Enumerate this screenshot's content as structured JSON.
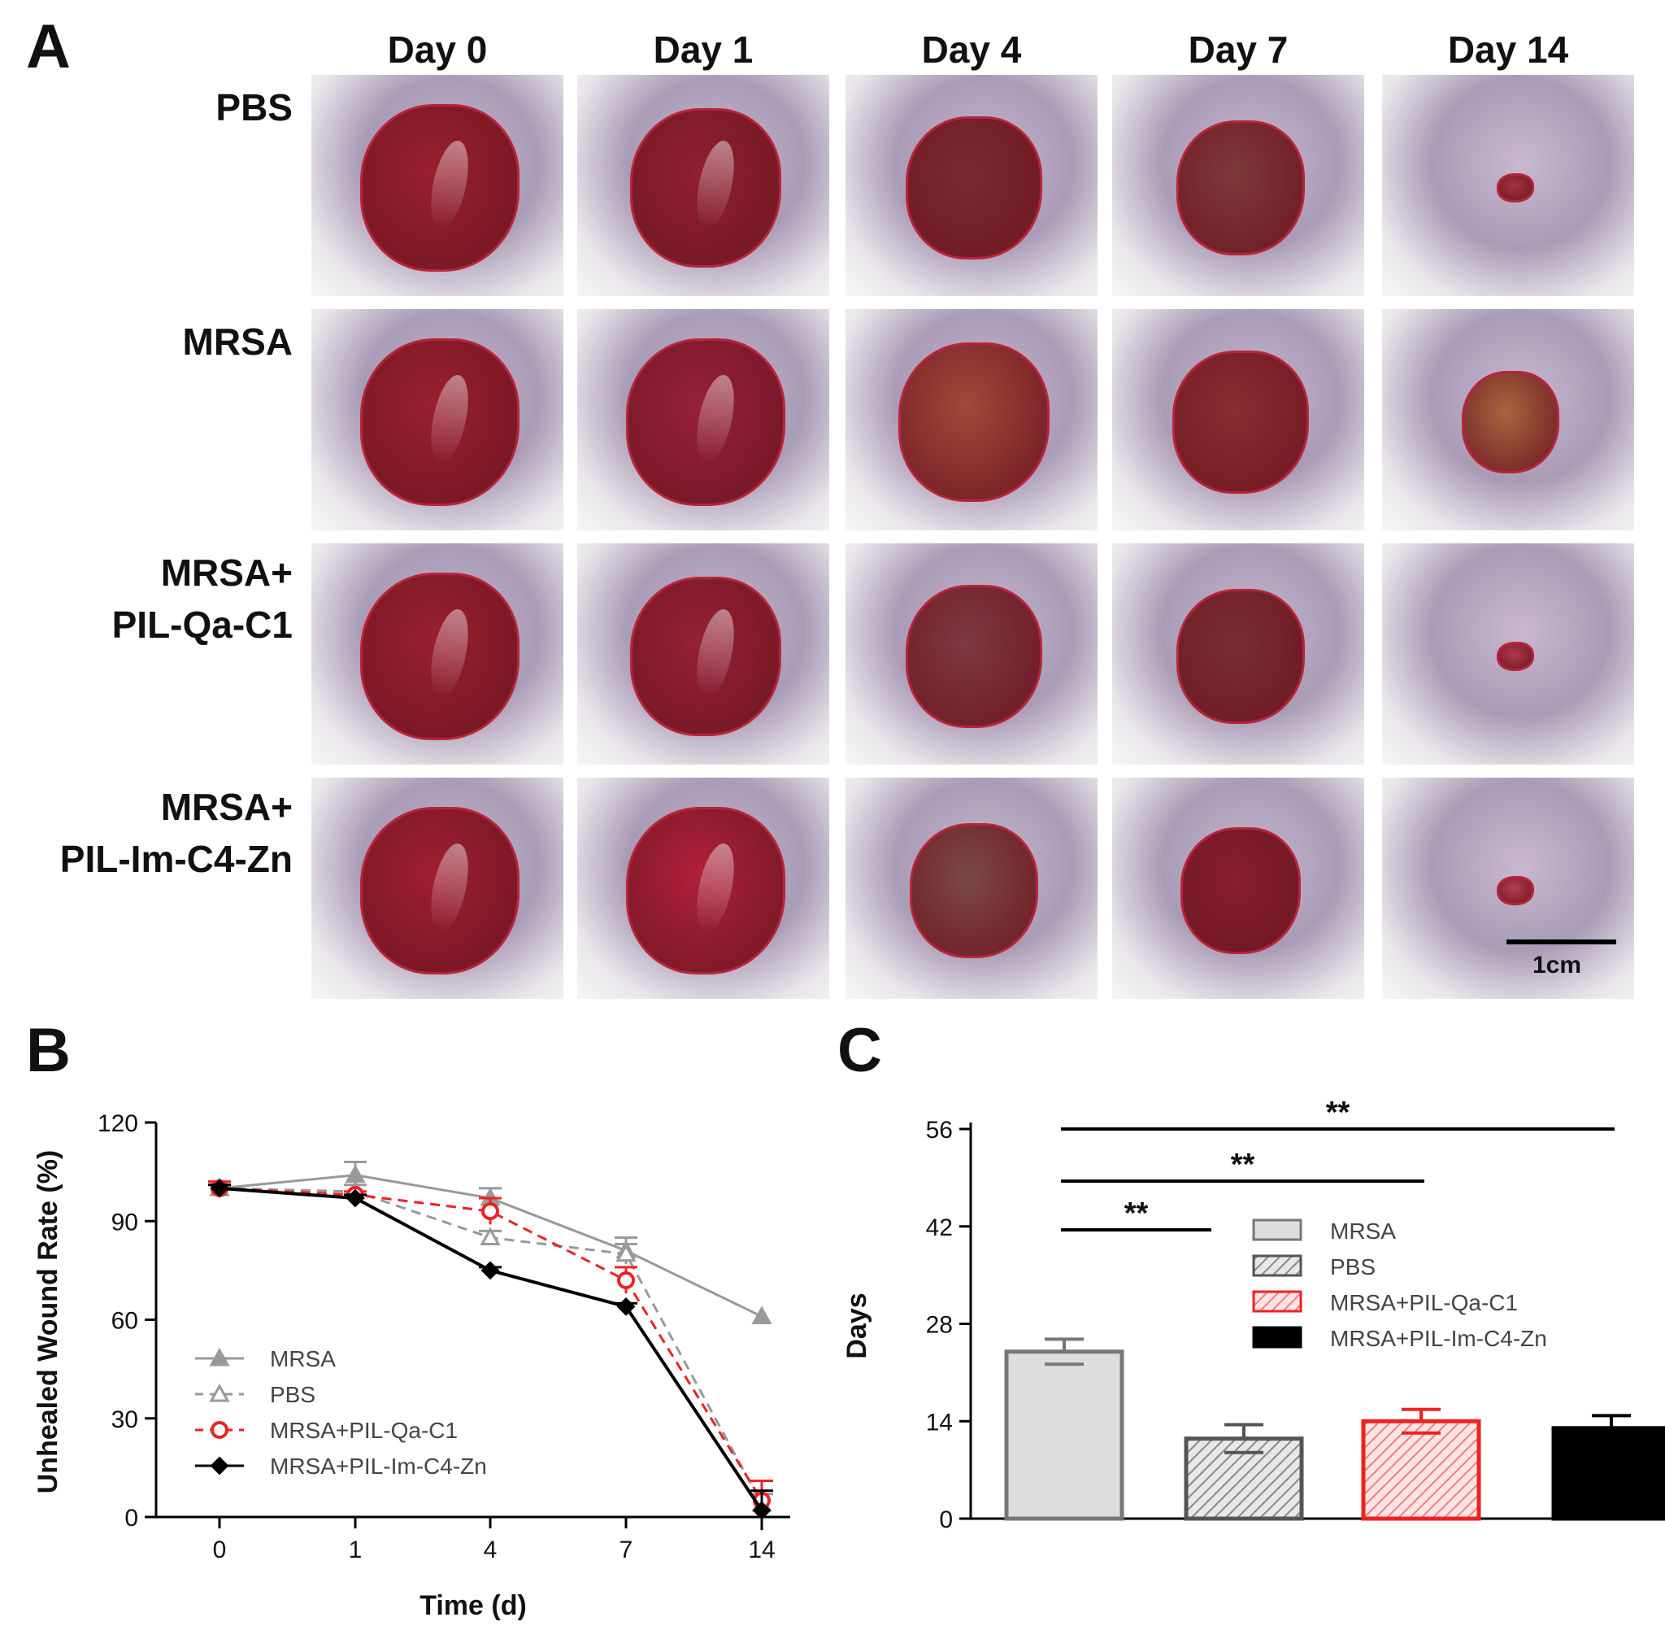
{
  "panel_a": {
    "letter": "A",
    "days": [
      "Day 0",
      "Day 1",
      "Day 4",
      "Day 7",
      "Day 14"
    ],
    "rows": [
      {
        "line1": "PBS",
        "line2": ""
      },
      {
        "line1": "MRSA",
        "line2": ""
      },
      {
        "line1": "MRSA+",
        "line2": "PIL-Qa-C1"
      },
      {
        "line1": "MRSA+",
        "line2": "PIL-Im-C4-Zn"
      }
    ],
    "scale_bar_label": "1cm"
  },
  "colors": {
    "gray": "#999999",
    "red": "#ee2222",
    "black": "#000000",
    "bar_gray": "#dddddd"
  },
  "chart_data": [
    {
      "panel": "B",
      "type": "line",
      "title": "",
      "xlabel": "Time (d)",
      "ylabel": "Unhealed Wound Rate (%)",
      "categories": [
        "0",
        "1",
        "4",
        "7",
        "14"
      ],
      "ylim": [
        0,
        120
      ],
      "yticks": [
        0,
        30,
        60,
        90,
        120
      ],
      "legend_position": "bottom-left",
      "series": [
        {
          "name": "MRSA",
          "values": [
            100,
            104,
            97,
            81,
            61
          ],
          "errors": [
            2,
            4,
            3,
            4,
            0
          ],
          "style": "solid",
          "marker": "triangle-filled",
          "color": "#999999"
        },
        {
          "name": "PBS",
          "values": [
            100,
            99,
            85,
            80,
            4
          ],
          "errors": [
            1,
            2,
            2,
            3,
            3
          ],
          "style": "dashed",
          "marker": "triangle-open",
          "color": "#999999"
        },
        {
          "name": "MRSA+PIL-Qa-C1",
          "values": [
            100,
            98,
            93,
            72,
            5
          ],
          "errors": [
            2,
            1,
            4,
            4,
            6
          ],
          "style": "dashed",
          "marker": "circle-open",
          "color": "#ee2222"
        },
        {
          "name": "MRSA+PIL-Im-C4-Zn",
          "values": [
            100,
            97,
            75,
            64,
            2
          ],
          "errors": [
            1,
            1,
            1,
            1,
            6
          ],
          "style": "solid",
          "marker": "diamond-filled",
          "color": "#000000"
        }
      ]
    },
    {
      "panel": "C",
      "type": "bar",
      "title": "",
      "xlabel": "",
      "ylabel": "Days",
      "ylim": [
        0,
        56
      ],
      "yticks": [
        0,
        14,
        28,
        42,
        56
      ],
      "legend_position": "top-right",
      "series": [
        {
          "name": "MRSA",
          "value": 24,
          "error": 1.8,
          "fill": "#dddddd",
          "edge": "#777777",
          "hatch": false
        },
        {
          "name": "PBS",
          "value": 11.5,
          "error": 2,
          "fill": "#dddddd",
          "edge": "#555555",
          "hatch": true
        },
        {
          "name": "MRSA+PIL-Qa-C1",
          "value": 14,
          "error": 1.7,
          "fill": "#ffd6d6",
          "edge": "#ee2222",
          "hatch": true
        },
        {
          "name": "MRSA+PIL-Im-C4-Zn",
          "value": 13,
          "error": 1.8,
          "fill": "#000000",
          "edge": "#000000",
          "hatch": false
        }
      ],
      "significance": [
        {
          "from": 0,
          "to": 1,
          "label": "**",
          "y": 41.5
        },
        {
          "from": 0,
          "to": 2,
          "label": "**",
          "y": 48.5
        },
        {
          "from": 0,
          "to": 3,
          "label": "**",
          "y": 56
        }
      ]
    }
  ]
}
